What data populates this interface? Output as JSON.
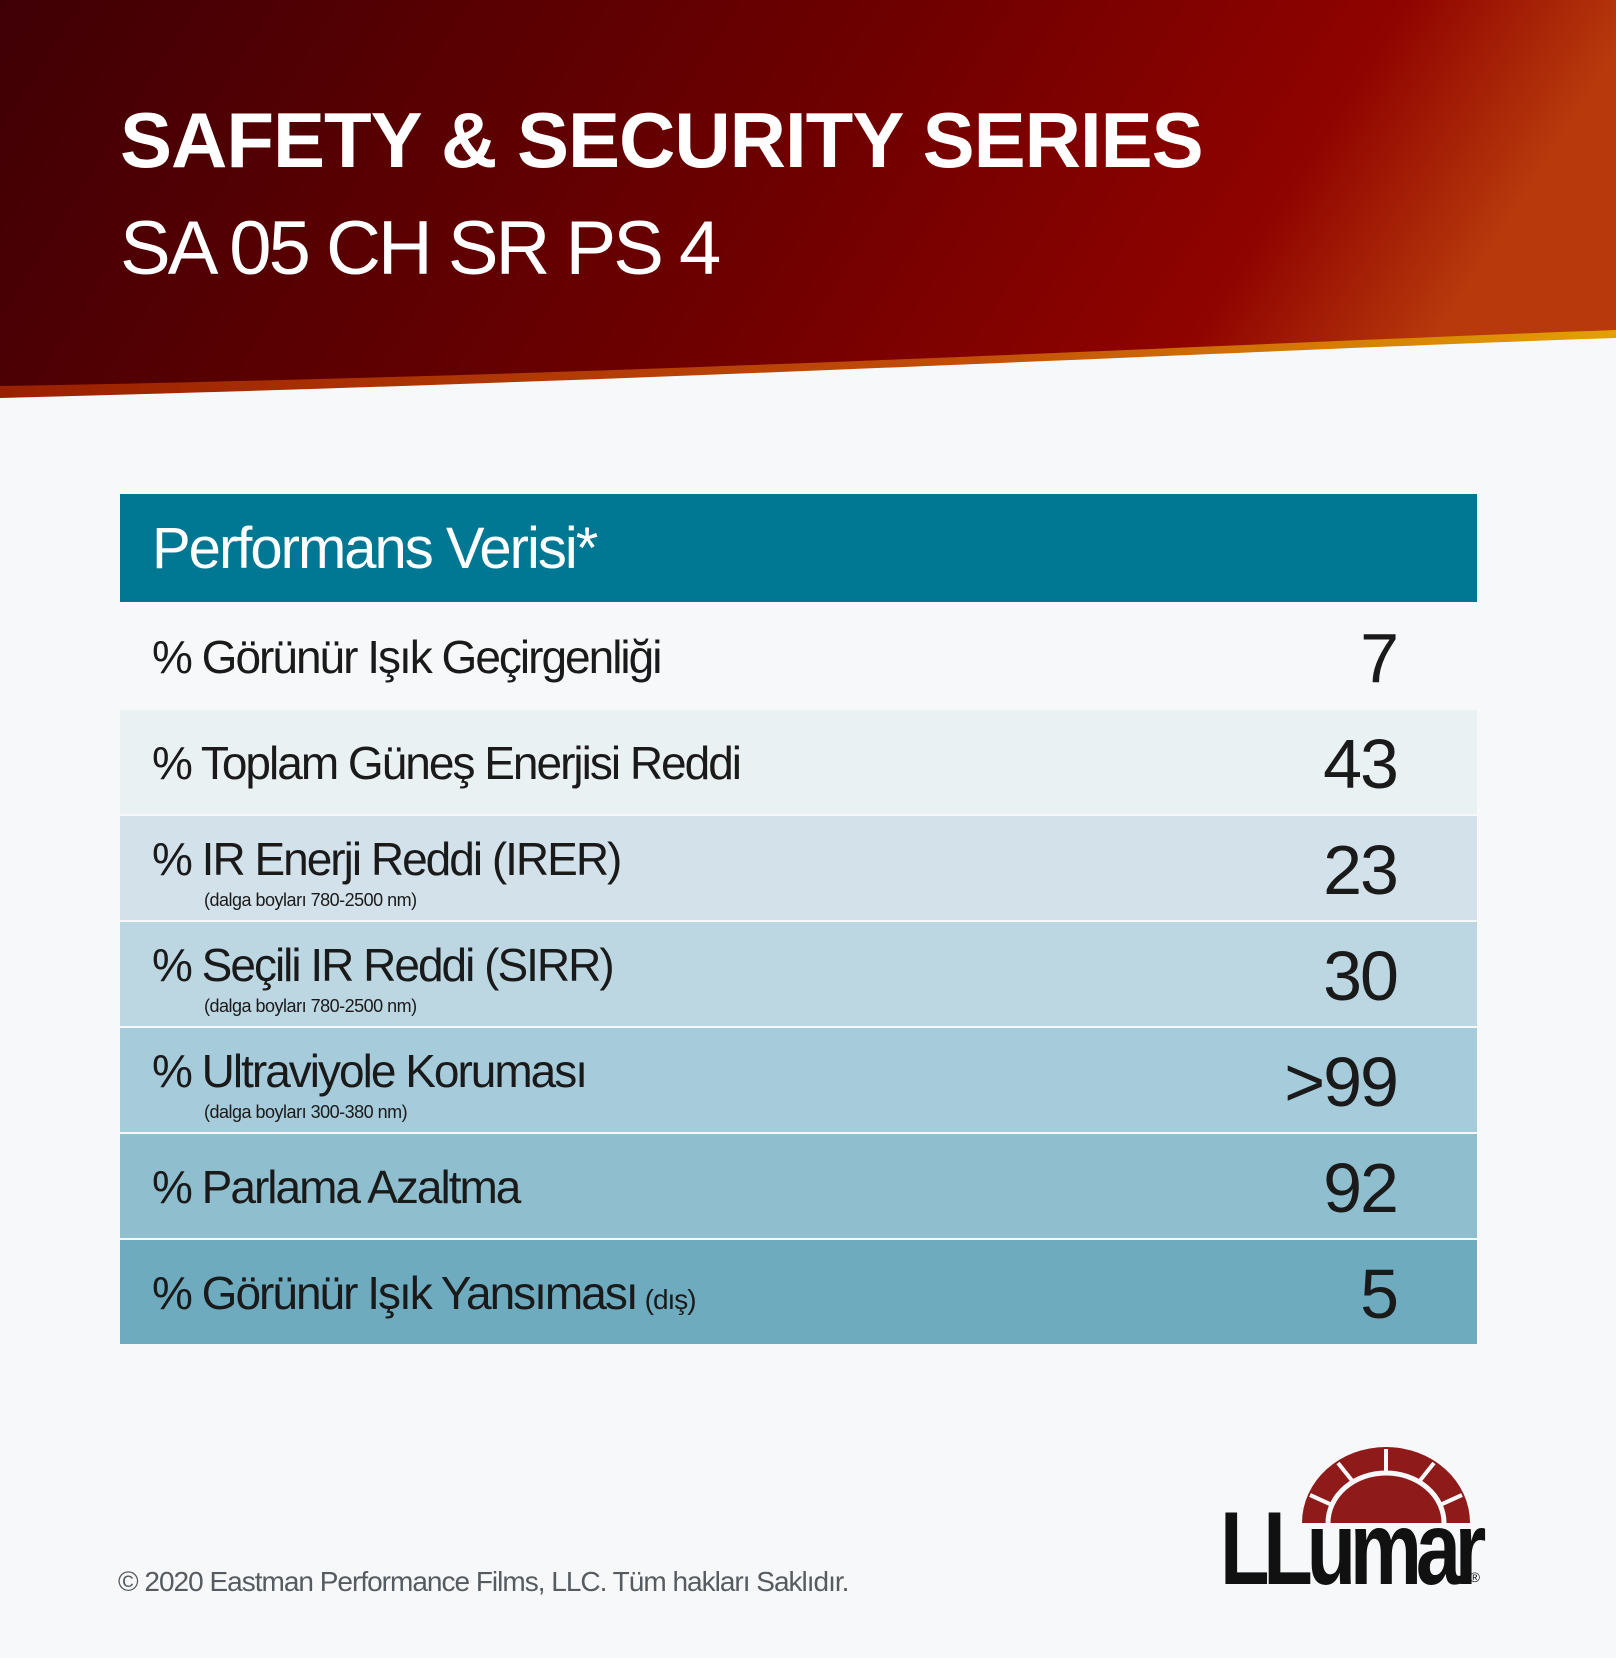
{
  "header": {
    "title": "SAFETY & SECURITY SERIES",
    "subtitle": "SA 05 CH SR PS 4"
  },
  "table": {
    "title": "Performans Verisi*",
    "rows": [
      {
        "label": "% Görünür Işık Geçirgenliği",
        "note": "",
        "qualifier": "",
        "value": "7",
        "color": "#f7f8f9"
      },
      {
        "label": "% Toplam Güneş Enerjisi Reddi",
        "note": "",
        "qualifier": "",
        "value": "43",
        "color": "#eaf1f3"
      },
      {
        "label": "% IR Enerji Reddi (IRER)",
        "note": "(dalga boyları 780-2500 nm)",
        "qualifier": "",
        "value": "23",
        "color": "#d3e2ea"
      },
      {
        "label": "% Seçili IR Reddi (SIRR)",
        "note": "(dalga boyları 780-2500 nm)",
        "qualifier": "",
        "value": "30",
        "color": "#bcd6e2"
      },
      {
        "label": "% Ultraviyole Koruması",
        "note": "(dalga boyları 300-380 nm)",
        "qualifier": "",
        "value": ">99",
        "color": "#a6cbdb"
      },
      {
        "label": "% Parlama Azaltma",
        "note": "",
        "qualifier": "",
        "value": "92",
        "color": "#8fbfcf"
      },
      {
        "label": "% Görünür Işık Yansıması",
        "note": "",
        "qualifier": "(dış)",
        "value": "5",
        "color": "#6eabbf"
      }
    ]
  },
  "footer": {
    "copyright": "© 2020 Eastman Performance Films, LLC. Tüm hakları Saklıdır."
  },
  "logo": {
    "text": "LLumar",
    "registered": "®"
  },
  "colors": {
    "banner_dark": "#4a0006",
    "banner_red": "#8e0500",
    "banner_orange": "#c24a10",
    "header_teal": "#007893"
  }
}
